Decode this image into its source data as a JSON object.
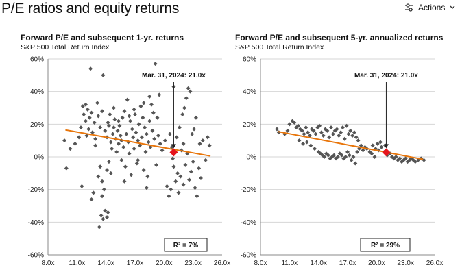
{
  "page": {
    "title": "P/E ratios and equity returns"
  },
  "actions": {
    "label": "Actions",
    "icon": "sliders-icon",
    "chevron": "chevron-down-icon"
  },
  "colors": {
    "points": "#555555",
    "trend": "#E8750A",
    "current": "#E5141B",
    "axis": "#888888"
  },
  "chart_data": [
    {
      "type": "scatter",
      "title": "Forward P/E and subsequent 1-yr. returns",
      "subtitle": "S&P 500 Total Return Index",
      "xlim": [
        8,
        26
      ],
      "ylim": [
        -60,
        60
      ],
      "xticks": [
        8,
        11,
        14,
        17,
        20,
        23,
        26
      ],
      "xtick_labels": [
        "8.0x",
        "11.0x",
        "14.0x",
        "17.0x",
        "20.0x",
        "23.0x",
        "26.0x"
      ],
      "yticks": [
        -60,
        -40,
        -20,
        0,
        20,
        40,
        60
      ],
      "ytick_labels": [
        "-60%",
        "-40%",
        "-20%",
        "0%",
        "20%",
        "40%",
        "60%"
      ],
      "annotation": {
        "text": "Mar. 31, 2024: 21.0x",
        "x": 21.0,
        "y": 2.8
      },
      "r2_label": "R² = 7%",
      "trend": [
        [
          9.8,
          16.5
        ],
        [
          24.8,
          0.5
        ]
      ],
      "points": [
        [
          9.7,
          10
        ],
        [
          9.9,
          -7
        ],
        [
          10.3,
          5
        ],
        [
          10.8,
          8
        ],
        [
          11.2,
          12
        ],
        [
          11.4,
          18
        ],
        [
          11.6,
          31
        ],
        [
          11.7,
          26
        ],
        [
          11.9,
          22
        ],
        [
          12.1,
          29
        ],
        [
          12.2,
          17
        ],
        [
          12.3,
          24
        ],
        [
          12.0,
          13
        ],
        [
          12.5,
          27
        ],
        [
          12.6,
          15
        ],
        [
          12.8,
          21
        ],
        [
          12.9,
          11
        ],
        [
          13.1,
          33
        ],
        [
          13.2,
          25
        ],
        [
          13.4,
          18
        ],
        [
          12.4,
          54
        ],
        [
          13.7,
          50
        ],
        [
          11.5,
          -18
        ],
        [
          12.5,
          -26
        ],
        [
          12.7,
          -22
        ],
        [
          13.2,
          -12
        ],
        [
          13.4,
          -6
        ],
        [
          13.6,
          -15
        ],
        [
          13.8,
          -20
        ],
        [
          14.1,
          -8
        ],
        [
          14.3,
          -3
        ],
        [
          14.5,
          -10
        ],
        [
          13.3,
          -43
        ],
        [
          13.5,
          -36
        ],
        [
          13.7,
          -38
        ],
        [
          13.9,
          -33
        ],
        [
          14.1,
          -37
        ],
        [
          14.2,
          -34
        ],
        [
          13.6,
          -24
        ],
        [
          13.9,
          16
        ],
        [
          14.1,
          12
        ],
        [
          14.2,
          21
        ],
        [
          14.4,
          26
        ],
        [
          14.5,
          9
        ],
        [
          14.6,
          5
        ],
        [
          14.7,
          14
        ],
        [
          14.8,
          18
        ],
        [
          14.9,
          23
        ],
        [
          15.0,
          11
        ],
        [
          15.1,
          3
        ],
        [
          15.2,
          16
        ],
        [
          15.3,
          8
        ],
        [
          15.4,
          19
        ],
        [
          15.5,
          13
        ],
        [
          15.6,
          -2
        ],
        [
          15.7,
          24
        ],
        [
          15.8,
          6
        ],
        [
          15.9,
          28
        ],
        [
          16.0,
          -6
        ],
        [
          16.1,
          14
        ],
        [
          16.2,
          35
        ],
        [
          16.3,
          9
        ],
        [
          16.4,
          2
        ],
        [
          16.5,
          22
        ],
        [
          16.6,
          -11
        ],
        [
          16.7,
          17
        ],
        [
          16.8,
          12
        ],
        [
          16.9,
          5
        ],
        [
          17.0,
          26
        ],
        [
          17.1,
          15
        ],
        [
          17.2,
          -4
        ],
        [
          17.3,
          10
        ],
        [
          17.4,
          20
        ],
        [
          17.5,
          7
        ],
        [
          17.6,
          31
        ],
        [
          17.7,
          12
        ],
        [
          17.8,
          24
        ],
        [
          17.9,
          -8
        ],
        [
          18.0,
          18
        ],
        [
          18.1,
          3
        ],
        [
          18.2,
          14
        ],
        [
          18.3,
          -12
        ],
        [
          18.4,
          9
        ],
        [
          18.5,
          22
        ],
        [
          18.6,
          6
        ],
        [
          18.8,
          16
        ],
        [
          19.0,
          11
        ],
        [
          19.2,
          -5
        ],
        [
          19.4,
          13
        ],
        [
          19.6,
          8
        ],
        [
          19.8,
          4
        ],
        [
          19.1,
          57
        ],
        [
          19.5,
          38
        ],
        [
          18.7,
          32
        ],
        [
          18.9,
          27
        ],
        [
          18.5,
          37
        ],
        [
          20.1,
          10
        ],
        [
          20.3,
          -18
        ],
        [
          20.5,
          -24
        ],
        [
          20.7,
          -20
        ],
        [
          20.8,
          6
        ],
        [
          21.0,
          -6
        ],
        [
          21.2,
          -15
        ],
        [
          21.4,
          -10
        ],
        [
          21.5,
          -22
        ],
        [
          21.7,
          -12
        ],
        [
          21.8,
          4
        ],
        [
          22.0,
          -17
        ],
        [
          22.2,
          -5
        ],
        [
          22.4,
          2
        ],
        [
          22.6,
          -14
        ],
        [
          22.8,
          -9
        ],
        [
          23.0,
          -3
        ],
        [
          23.2,
          -19
        ],
        [
          23.4,
          -24
        ],
        [
          23.6,
          -7
        ],
        [
          21.3,
          12
        ],
        [
          21.6,
          18
        ],
        [
          21.9,
          26
        ],
        [
          22.1,
          30
        ],
        [
          22.3,
          36
        ],
        [
          22.5,
          42
        ],
        [
          22.7,
          40
        ],
        [
          22.9,
          14
        ],
        [
          23.1,
          17
        ],
        [
          23.3,
          24
        ],
        [
          23.7,
          8
        ],
        [
          24.0,
          10
        ],
        [
          24.3,
          -2
        ],
        [
          24.5,
          12
        ],
        [
          24.7,
          7
        ],
        [
          21.0,
          43
        ],
        [
          22.0,
          8
        ],
        [
          23.8,
          -13
        ],
        [
          20.9,
          -1
        ],
        [
          20.6,
          14
        ],
        [
          14.3,
          19
        ],
        [
          14.8,
          30
        ],
        [
          15.3,
          22
        ],
        [
          16.4,
          25
        ],
        [
          17.3,
          -2
        ],
        [
          17.9,
          33
        ],
        [
          15.6,
          10
        ],
        [
          16.9,
          29
        ],
        [
          12.9,
          7
        ],
        [
          13.6,
          28
        ],
        [
          11.9,
          32
        ],
        [
          18.2,
          -19
        ],
        [
          19.3,
          24
        ],
        [
          15.9,
          -15
        ]
      ]
    },
    {
      "type": "scatter",
      "title": "Forward P/E and subsequent 5-yr. annualized returns",
      "subtitle": "S&P 500 Total Return Index",
      "xlim": [
        8,
        26
      ],
      "ylim": [
        -60,
        60
      ],
      "xticks": [
        8,
        11,
        14,
        17,
        20,
        23,
        26
      ],
      "xtick_labels": [
        "8.0x",
        "11.0x",
        "14.0x",
        "17.0x",
        "20.0x",
        "23.0x",
        "26.0x"
      ],
      "yticks": [
        -60,
        -40,
        -20,
        0,
        20,
        40,
        60
      ],
      "ytick_labels": [
        "-60%",
        "-40%",
        "-20%",
        "0%",
        "20%",
        "40%",
        "60%"
      ],
      "annotation": {
        "text": "Mar. 31, 2024: 21.0x",
        "x": 21.0,
        "y": 2.8
      },
      "r2_label": "R² = 29%",
      "trend": [
        [
          9.8,
          15.5
        ],
        [
          24.8,
          -1.5
        ]
      ],
      "points": [
        [
          9.7,
          17
        ],
        [
          9.9,
          15
        ],
        [
          10.5,
          14
        ],
        [
          10.8,
          16
        ],
        [
          11.0,
          20
        ],
        [
          11.3,
          22
        ],
        [
          11.5,
          21
        ],
        [
          11.7,
          18
        ],
        [
          11.9,
          19
        ],
        [
          12.1,
          17
        ],
        [
          12.3,
          16
        ],
        [
          12.5,
          14
        ],
        [
          12.7,
          18
        ],
        [
          12.9,
          15
        ],
        [
          13.1,
          13
        ],
        [
          13.3,
          17
        ],
        [
          13.5,
          16
        ],
        [
          13.7,
          14
        ],
        [
          13.9,
          18
        ],
        [
          14.1,
          19
        ],
        [
          14.3,
          15
        ],
        [
          14.5,
          13
        ],
        [
          14.7,
          17
        ],
        [
          14.9,
          16
        ],
        [
          15.1,
          12
        ],
        [
          15.3,
          18
        ],
        [
          15.5,
          14
        ],
        [
          15.7,
          16
        ],
        [
          15.9,
          17
        ],
        [
          16.1,
          13
        ],
        [
          16.3,
          15
        ],
        [
          16.5,
          18
        ],
        [
          16.7,
          11
        ],
        [
          16.9,
          19
        ],
        [
          17.1,
          14
        ],
        [
          17.3,
          16
        ],
        [
          17.5,
          13
        ],
        [
          17.7,
          15
        ],
        [
          17.9,
          12
        ],
        [
          18.1,
          10
        ],
        [
          12.0,
          10
        ],
        [
          12.4,
          8
        ],
        [
          12.8,
          9
        ],
        [
          13.2,
          7
        ],
        [
          13.6,
          5
        ],
        [
          14.0,
          3
        ],
        [
          14.2,
          2
        ],
        [
          14.4,
          1
        ],
        [
          14.6,
          0
        ],
        [
          14.8,
          2
        ],
        [
          15.0,
          1
        ],
        [
          15.2,
          -1
        ],
        [
          15.4,
          0
        ],
        [
          15.6,
          1
        ],
        [
          15.8,
          -1
        ],
        [
          16.0,
          0
        ],
        [
          16.2,
          2
        ],
        [
          16.4,
          1
        ],
        [
          16.6,
          -1
        ],
        [
          16.8,
          0
        ],
        [
          17.0,
          3
        ],
        [
          17.2,
          1
        ],
        [
          17.4,
          -2
        ],
        [
          17.6,
          0
        ],
        [
          17.8,
          -4
        ],
        [
          18.0,
          3
        ],
        [
          18.2,
          5
        ],
        [
          18.4,
          7
        ],
        [
          18.6,
          4
        ],
        [
          18.8,
          6
        ],
        [
          19.0,
          5
        ],
        [
          19.3,
          3
        ],
        [
          19.6,
          7
        ],
        [
          19.9,
          5
        ],
        [
          20.2,
          4
        ],
        [
          20.5,
          6
        ],
        [
          20.8,
          3
        ],
        [
          21.1,
          1
        ],
        [
          21.4,
          2
        ],
        [
          21.6,
          0
        ],
        [
          21.8,
          -1
        ],
        [
          22.0,
          0
        ],
        [
          22.2,
          -2
        ],
        [
          22.4,
          -1
        ],
        [
          22.6,
          -3
        ],
        [
          22.8,
          -2
        ],
        [
          23.0,
          -1
        ],
        [
          23.2,
          -3
        ],
        [
          23.4,
          -2
        ],
        [
          23.6,
          -1
        ],
        [
          23.8,
          -2
        ],
        [
          24.0,
          -3
        ],
        [
          24.3,
          -2
        ],
        [
          24.6,
          -1
        ],
        [
          24.9,
          -2
        ],
        [
          20.1,
          8
        ],
        [
          20.4,
          9
        ],
        [
          20.9,
          7
        ],
        [
          19.5,
          2
        ],
        [
          19.8,
          0
        ]
      ]
    }
  ]
}
